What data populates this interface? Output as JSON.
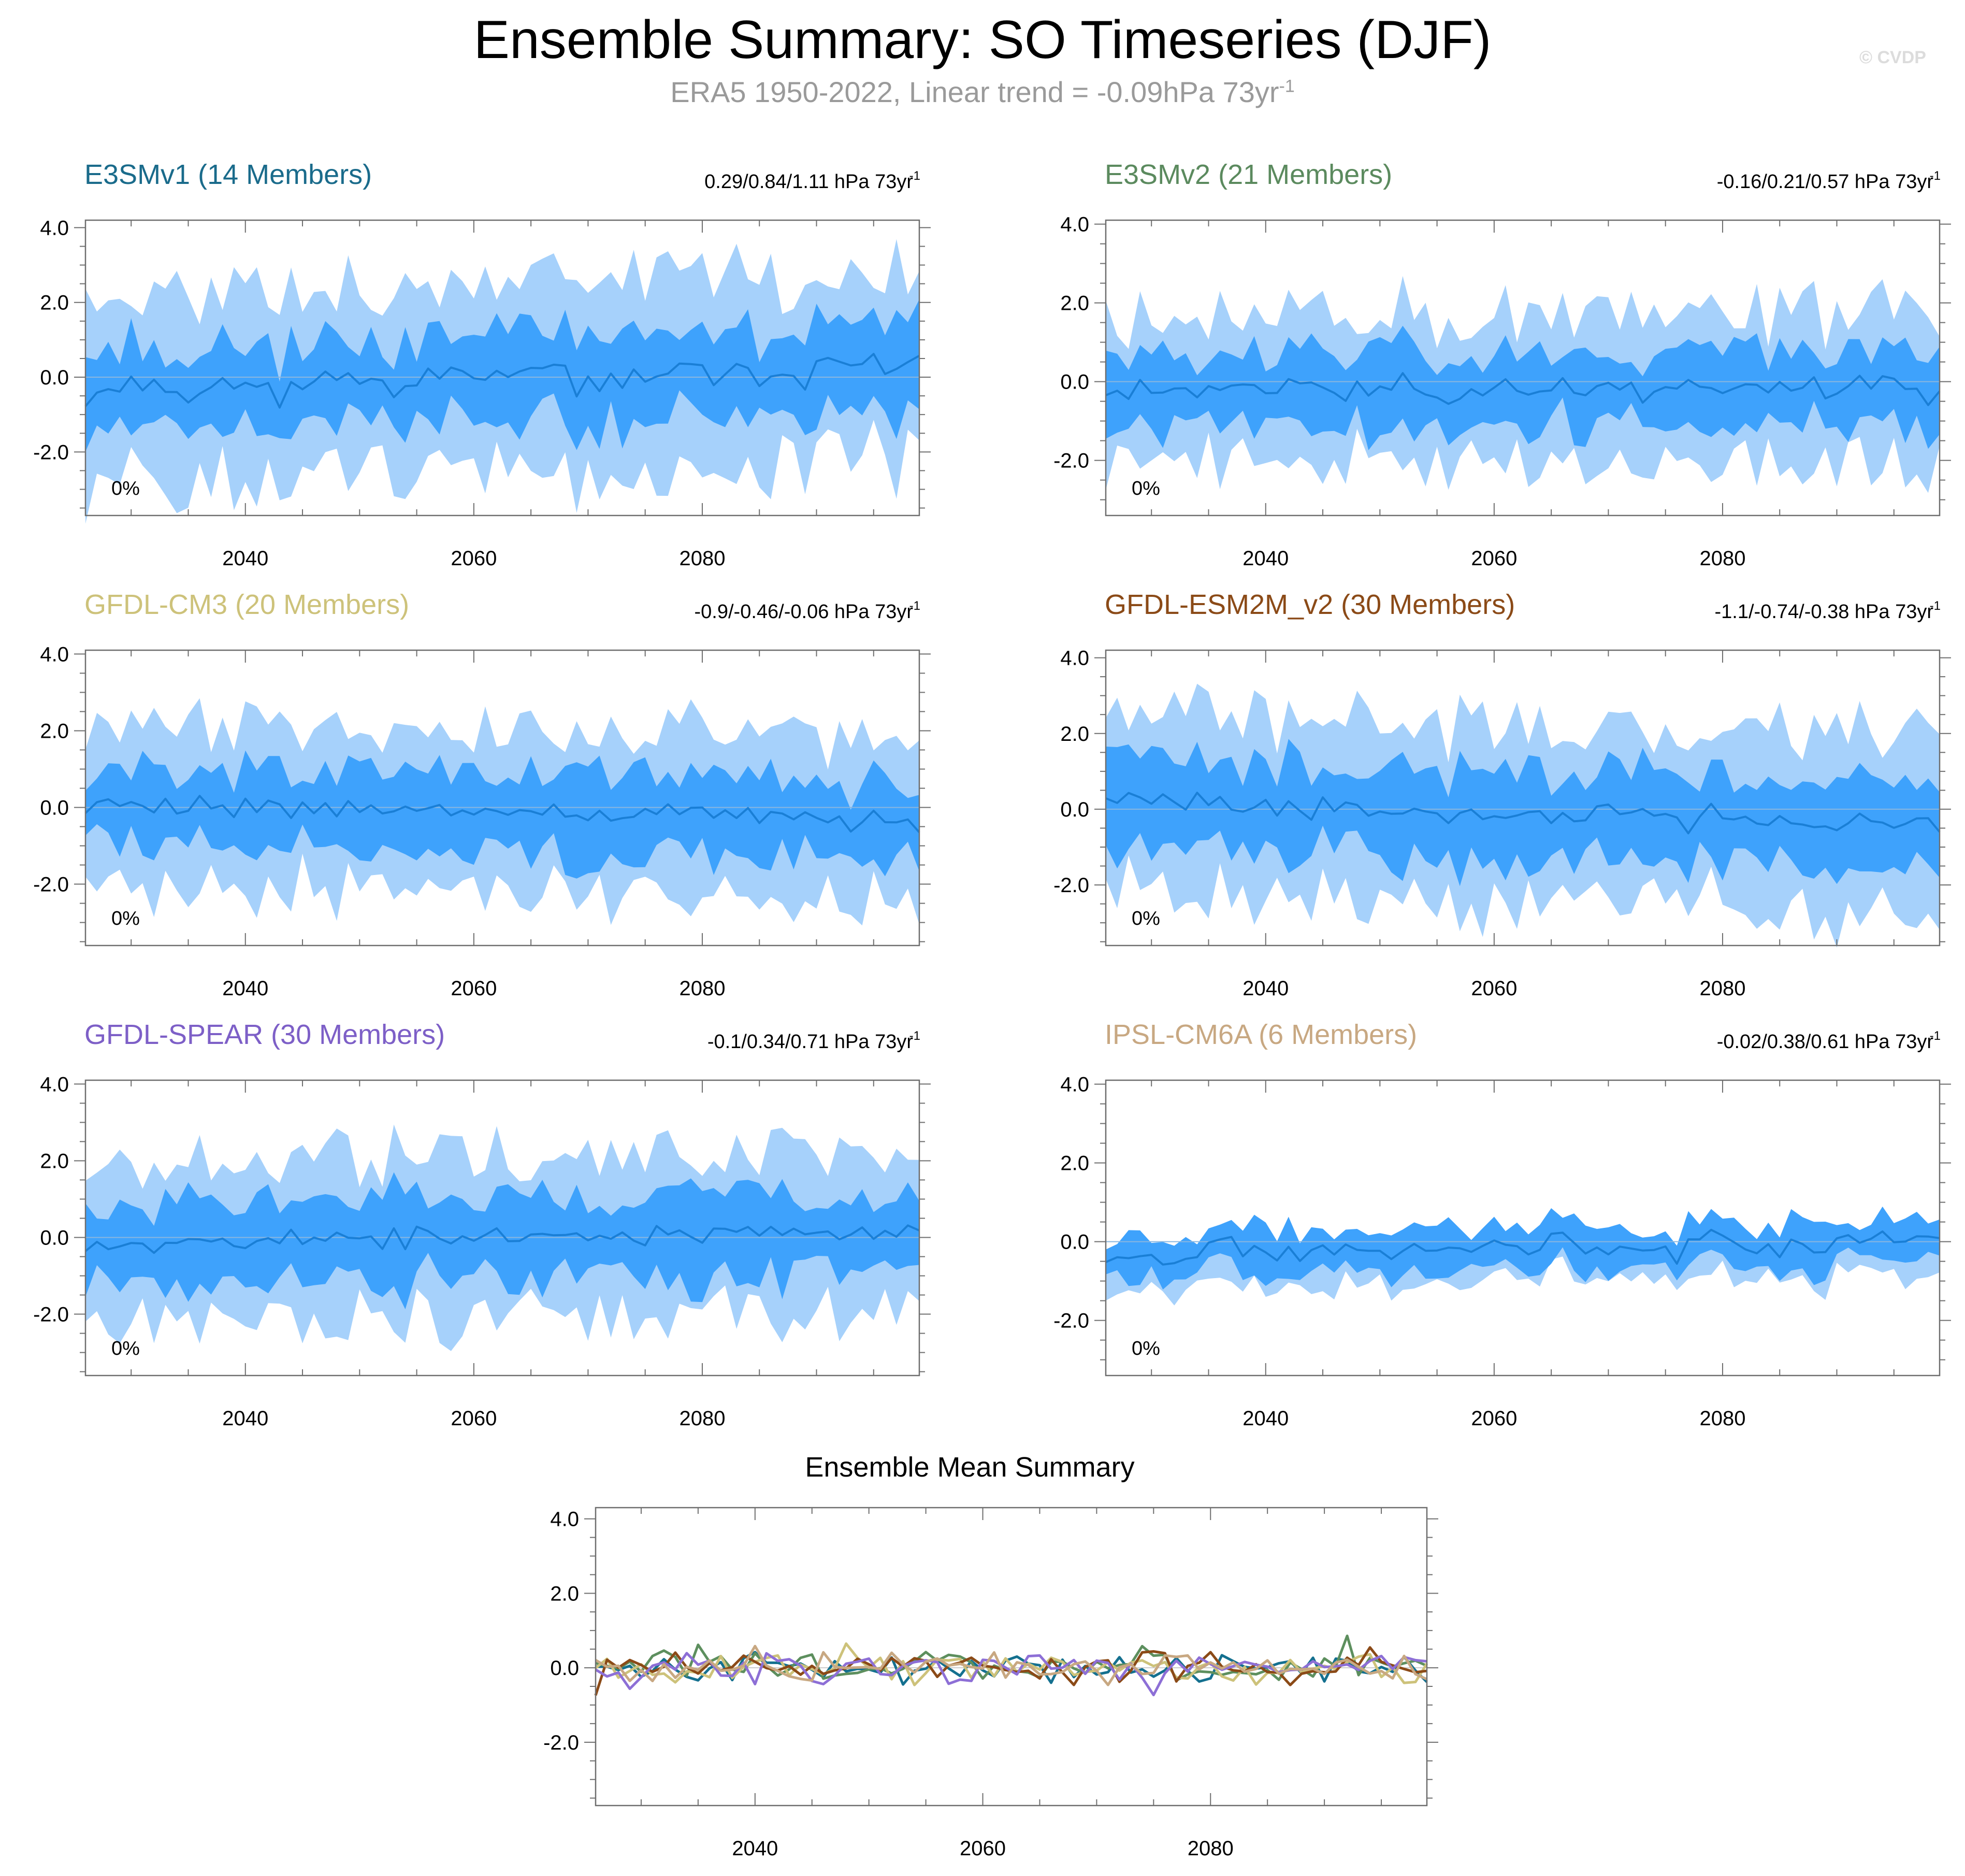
{
  "header": {
    "title": "Ensemble Summary: SO Timeseries (DJF)",
    "subtitle": "ERA5 1950-2022, Linear trend = -0.09hPa 73yr",
    "subtitle_sup": "-1",
    "watermark": "© CVDP"
  },
  "colors": {
    "band_outer": "#a6d1fb",
    "band_inner": "#3ea2fc",
    "mean_line": "#1a7fd6",
    "zero_line": "#8ab6df"
  },
  "chart_data": [
    {
      "type": "area",
      "title": "E3SMv1 (14 Members)",
      "title_color": "#1a6b8b",
      "trend": "0.29/0.84/1.11 hPa 73yr",
      "trend_sup": "-1",
      "percent": "0%",
      "xlim": [
        2026,
        2099
      ],
      "ylim": [
        -3.7,
        4.2
      ],
      "ytick_labels": [
        "4.0",
        "2.0",
        "0.0",
        "-2.0"
      ],
      "xtick_labels": [
        "2040",
        "2060",
        "2080"
      ],
      "seed": 11,
      "outer_amp": 2.1,
      "inner_amp": 1.1,
      "mean_amp": 0.45,
      "trend_slope": 0.0087,
      "start": -0.35
    },
    {
      "type": "area",
      "title": "E3SMv2 (21 Members)",
      "title_color": "#5b8a5e",
      "trend": "-0.16/0.21/0.57 hPa 73yr",
      "trend_sup": "-1",
      "percent": "0%",
      "xlim": [
        2026,
        2099
      ],
      "ylim": [
        -3.4,
        4.1
      ],
      "ytick_labels": [
        "4.0",
        "2.0",
        "0.0",
        "-2.0"
      ],
      "xtick_labels": [
        "2040",
        "2060",
        "2080"
      ],
      "seed": 23,
      "outer_amp": 1.6,
      "inner_amp": 0.95,
      "mean_amp": 0.35,
      "trend_slope": 0.002,
      "start": -0.25
    },
    {
      "type": "area",
      "title": "GFDL-CM3 (20 Members)",
      "title_color": "#cdc27a",
      "trend": "-0.9/-0.46/-0.06 hPa 73yr",
      "trend_sup": "-1",
      "percent": "0%",
      "xlim": [
        2026,
        2099
      ],
      "ylim": [
        -3.6,
        4.1
      ],
      "ytick_labels": [
        "4.0",
        "2.0",
        "0.0",
        "-2.0"
      ],
      "xtick_labels": [
        "2040",
        "2060",
        "2080"
      ],
      "seed": 37,
      "outer_amp": 1.75,
      "inner_amp": 1.0,
      "mean_amp": 0.3,
      "trend_slope": -0.0055,
      "start": 0.1
    },
    {
      "type": "area",
      "title": "GFDL-ESM2M_v2 (30 Members)",
      "title_color": "#8b4a17",
      "trend": "-1.1/-0.74/-0.38 hPa 73yr",
      "trend_sup": "-1",
      "percent": "0%",
      "xlim": [
        2026,
        2099
      ],
      "ylim": [
        -3.6,
        4.2
      ],
      "ytick_labels": [
        "4.0",
        "2.0",
        "0.0",
        "-2.0"
      ],
      "xtick_labels": [
        "2040",
        "2060",
        "2080"
      ],
      "seed": 41,
      "outer_amp": 2.0,
      "inner_amp": 1.15,
      "mean_amp": 0.3,
      "trend_slope": -0.0085,
      "start": 0.2
    },
    {
      "type": "area",
      "title": "GFDL-SPEAR (30 Members)",
      "title_color": "#7d5fc7",
      "trend": "-0.1/0.34/0.71 hPa 73yr",
      "trend_sup": "-1",
      "percent": "0%",
      "xlim": [
        2026,
        2099
      ],
      "ylim": [
        -3.6,
        4.1
      ],
      "ytick_labels": [
        "4.0",
        "2.0",
        "0.0",
        "-2.0"
      ],
      "xtick_labels": [
        "2040",
        "2060",
        "2080"
      ],
      "seed": 53,
      "outer_amp": 1.75,
      "inner_amp": 1.05,
      "mean_amp": 0.25,
      "trend_slope": 0.004,
      "start": -0.15
    },
    {
      "type": "area",
      "title": "IPSL-CM6A (6 Members)",
      "title_color": "#c8a882",
      "trend": "-0.02/0.38/0.61 hPa 73yr",
      "trend_sup": "-1",
      "percent": "0%",
      "xlim": [
        2026,
        2099
      ],
      "ylim": [
        -3.4,
        4.1
      ],
      "ytick_labels": [
        "4.0",
        "2.0",
        "0.0",
        "-2.0"
      ],
      "xtick_labels": [
        "2040",
        "2060",
        "2080"
      ],
      "seed": 67,
      "outer_amp": 0.75,
      "inner_amp": 0.55,
      "mean_amp": 0.35,
      "trend_slope": 0.005,
      "start": -0.35,
      "narrow": true
    },
    {
      "type": "line",
      "title": "Ensemble Mean Summary",
      "title_color": "#000000",
      "xlim": [
        2026,
        2099
      ],
      "ylim": [
        -3.7,
        4.3
      ],
      "ytick_labels": [
        "4.0",
        "2.0",
        "0.0",
        "-2.0"
      ],
      "xtick_labels": [
        "2040",
        "2060",
        "2080"
      ],
      "series": [
        {
          "name": "E3SMv1",
          "color": "#14708f",
          "seed": 101
        },
        {
          "name": "E3SMv2",
          "color": "#5d8f5e",
          "seed": 103
        },
        {
          "name": "GFDL-CM3",
          "color": "#cdc27a",
          "seed": 107
        },
        {
          "name": "GFDL-ESM2M_v2",
          "color": "#8b4a17",
          "seed": 109
        },
        {
          "name": "GFDL-SPEAR",
          "color": "#8d6fd6",
          "seed": 113
        },
        {
          "name": "IPSL-CM6A",
          "color": "#c8a882",
          "seed": 127
        }
      ]
    }
  ]
}
